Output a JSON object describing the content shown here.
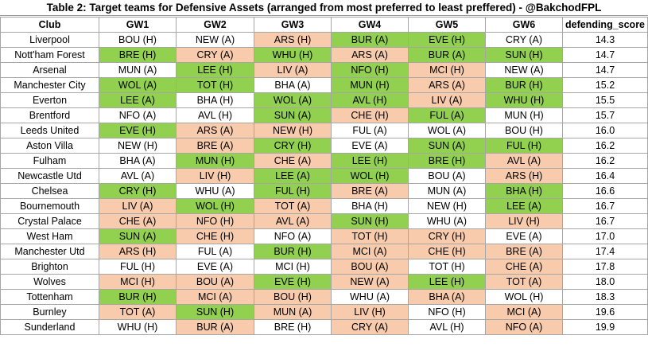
{
  "title": "Table 2: Target teams for Defensive Assets (arranged from most preferred to least preffered) - @BakchodFPL",
  "colors": {
    "green": "#92d050",
    "red": "#f8cbad",
    "white": "#ffffff"
  },
  "headers": [
    "Club",
    "GW1",
    "GW2",
    "GW3",
    "GW4",
    "GW5",
    "GW6",
    "defending_score"
  ],
  "rows": [
    {
      "club": "Liverpool",
      "fixtures": [
        {
          "t": "BOU (H)",
          "c": "w"
        },
        {
          "t": "NEW (A)",
          "c": "w"
        },
        {
          "t": "ARS (H)",
          "c": "r"
        },
        {
          "t": "BUR (A)",
          "c": "g"
        },
        {
          "t": "EVE (H)",
          "c": "g"
        },
        {
          "t": "CRY (A)",
          "c": "w"
        }
      ],
      "score": "14.3"
    },
    {
      "club": "Nott'ham Forest",
      "fixtures": [
        {
          "t": "BRE (H)",
          "c": "g"
        },
        {
          "t": "CRY (A)",
          "c": "r"
        },
        {
          "t": "WHU (H)",
          "c": "g"
        },
        {
          "t": "ARS (A)",
          "c": "r"
        },
        {
          "t": "BUR (A)",
          "c": "g"
        },
        {
          "t": "SUN (H)",
          "c": "g"
        }
      ],
      "score": "14.7"
    },
    {
      "club": "Arsenal",
      "fixtures": [
        {
          "t": "MUN (A)",
          "c": "w"
        },
        {
          "t": "LEE (H)",
          "c": "g"
        },
        {
          "t": "LIV (A)",
          "c": "r"
        },
        {
          "t": "NFO (H)",
          "c": "g"
        },
        {
          "t": "MCI (H)",
          "c": "r"
        },
        {
          "t": "NEW (A)",
          "c": "w"
        }
      ],
      "score": "14.7"
    },
    {
      "club": "Manchester City",
      "fixtures": [
        {
          "t": "WOL (A)",
          "c": "g"
        },
        {
          "t": "TOT (H)",
          "c": "g"
        },
        {
          "t": "BHA (A)",
          "c": "w"
        },
        {
          "t": "MUN (H)",
          "c": "g"
        },
        {
          "t": "ARS (A)",
          "c": "r"
        },
        {
          "t": "BUR (H)",
          "c": "g"
        }
      ],
      "score": "15.2"
    },
    {
      "club": "Everton",
      "fixtures": [
        {
          "t": "LEE (A)",
          "c": "g"
        },
        {
          "t": "BHA (H)",
          "c": "w"
        },
        {
          "t": "WOL (A)",
          "c": "g"
        },
        {
          "t": "AVL (H)",
          "c": "g"
        },
        {
          "t": "LIV (A)",
          "c": "r"
        },
        {
          "t": "WHU (H)",
          "c": "g"
        }
      ],
      "score": "15.5"
    },
    {
      "club": "Brentford",
      "fixtures": [
        {
          "t": "NFO (A)",
          "c": "w"
        },
        {
          "t": "AVL (H)",
          "c": "w"
        },
        {
          "t": "SUN (A)",
          "c": "g"
        },
        {
          "t": "CHE (H)",
          "c": "r"
        },
        {
          "t": "FUL (A)",
          "c": "g"
        },
        {
          "t": "MUN (H)",
          "c": "w"
        }
      ],
      "score": "15.7"
    },
    {
      "club": "Leeds United",
      "fixtures": [
        {
          "t": "EVE (H)",
          "c": "g"
        },
        {
          "t": "ARS (A)",
          "c": "r"
        },
        {
          "t": "NEW (H)",
          "c": "r"
        },
        {
          "t": "FUL (A)",
          "c": "w"
        },
        {
          "t": "WOL (A)",
          "c": "w"
        },
        {
          "t": "BOU (H)",
          "c": "w"
        }
      ],
      "score": "16.0"
    },
    {
      "club": "Aston Villa",
      "fixtures": [
        {
          "t": "NEW (H)",
          "c": "w"
        },
        {
          "t": "BRE (A)",
          "c": "r"
        },
        {
          "t": "CRY (H)",
          "c": "g"
        },
        {
          "t": "EVE (A)",
          "c": "w"
        },
        {
          "t": "SUN (A)",
          "c": "g"
        },
        {
          "t": "FUL (H)",
          "c": "g"
        }
      ],
      "score": "16.2"
    },
    {
      "club": "Fulham",
      "fixtures": [
        {
          "t": "BHA (A)",
          "c": "w"
        },
        {
          "t": "MUN (H)",
          "c": "g"
        },
        {
          "t": "CHE (A)",
          "c": "r"
        },
        {
          "t": "LEE (H)",
          "c": "g"
        },
        {
          "t": "BRE (H)",
          "c": "g"
        },
        {
          "t": "AVL (A)",
          "c": "r"
        }
      ],
      "score": "16.2"
    },
    {
      "club": "Newcastle Utd",
      "fixtures": [
        {
          "t": "AVL (A)",
          "c": "w"
        },
        {
          "t": "LIV (H)",
          "c": "r"
        },
        {
          "t": "LEE (A)",
          "c": "g"
        },
        {
          "t": "WOL (H)",
          "c": "g"
        },
        {
          "t": "BOU (A)",
          "c": "w"
        },
        {
          "t": "ARS (H)",
          "c": "r"
        }
      ],
      "score": "16.4"
    },
    {
      "club": "Chelsea",
      "fixtures": [
        {
          "t": "CRY (H)",
          "c": "g"
        },
        {
          "t": "WHU (A)",
          "c": "w"
        },
        {
          "t": "FUL (H)",
          "c": "g"
        },
        {
          "t": "BRE (A)",
          "c": "r"
        },
        {
          "t": "MUN (A)",
          "c": "w"
        },
        {
          "t": "BHA (H)",
          "c": "g"
        }
      ],
      "score": "16.6"
    },
    {
      "club": "Bournemouth",
      "fixtures": [
        {
          "t": "LIV (A)",
          "c": "r"
        },
        {
          "t": "WOL (H)",
          "c": "g"
        },
        {
          "t": "TOT (A)",
          "c": "r"
        },
        {
          "t": "BHA (H)",
          "c": "w"
        },
        {
          "t": "NEW (H)",
          "c": "w"
        },
        {
          "t": "LEE (A)",
          "c": "g"
        }
      ],
      "score": "16.7"
    },
    {
      "club": "Crystal Palace",
      "fixtures": [
        {
          "t": "CHE (A)",
          "c": "r"
        },
        {
          "t": "NFO (H)",
          "c": "r"
        },
        {
          "t": "AVL (A)",
          "c": "r"
        },
        {
          "t": "SUN (H)",
          "c": "g"
        },
        {
          "t": "WHU (A)",
          "c": "w"
        },
        {
          "t": "LIV (H)",
          "c": "r"
        }
      ],
      "score": "16.7"
    },
    {
      "club": "West Ham",
      "fixtures": [
        {
          "t": "SUN (A)",
          "c": "g"
        },
        {
          "t": "CHE (H)",
          "c": "r"
        },
        {
          "t": "NFO (A)",
          "c": "w"
        },
        {
          "t": "TOT (H)",
          "c": "r"
        },
        {
          "t": "CRY (H)",
          "c": "r"
        },
        {
          "t": "EVE (A)",
          "c": "w"
        }
      ],
      "score": "17.0"
    },
    {
      "club": "Manchester Utd",
      "fixtures": [
        {
          "t": "ARS (H)",
          "c": "r"
        },
        {
          "t": "FUL (A)",
          "c": "w"
        },
        {
          "t": "BUR (H)",
          "c": "g"
        },
        {
          "t": "MCI (A)",
          "c": "r"
        },
        {
          "t": "CHE (H)",
          "c": "r"
        },
        {
          "t": "BRE (A)",
          "c": "r"
        }
      ],
      "score": "17.4"
    },
    {
      "club": "Brighton",
      "fixtures": [
        {
          "t": "FUL (H)",
          "c": "w"
        },
        {
          "t": "EVE (A)",
          "c": "w"
        },
        {
          "t": "MCI (H)",
          "c": "w"
        },
        {
          "t": "BOU (A)",
          "c": "r"
        },
        {
          "t": "TOT (H)",
          "c": "w"
        },
        {
          "t": "CHE (A)",
          "c": "r"
        }
      ],
      "score": "17.8"
    },
    {
      "club": "Wolves",
      "fixtures": [
        {
          "t": "MCI (H)",
          "c": "r"
        },
        {
          "t": "BOU (A)",
          "c": "r"
        },
        {
          "t": "EVE (H)",
          "c": "g"
        },
        {
          "t": "NEW (A)",
          "c": "r"
        },
        {
          "t": "LEE (H)",
          "c": "g"
        },
        {
          "t": "TOT (A)",
          "c": "r"
        }
      ],
      "score": "18.0"
    },
    {
      "club": "Tottenham",
      "fixtures": [
        {
          "t": "BUR (H)",
          "c": "g"
        },
        {
          "t": "MCI (A)",
          "c": "r"
        },
        {
          "t": "BOU (H)",
          "c": "r"
        },
        {
          "t": "WHU (A)",
          "c": "w"
        },
        {
          "t": "BHA (A)",
          "c": "r"
        },
        {
          "t": "WOL (H)",
          "c": "w"
        }
      ],
      "score": "18.3"
    },
    {
      "club": "Burnley",
      "fixtures": [
        {
          "t": "TOT (A)",
          "c": "r"
        },
        {
          "t": "SUN (H)",
          "c": "g"
        },
        {
          "t": "MUN (A)",
          "c": "r"
        },
        {
          "t": "LIV (H)",
          "c": "r"
        },
        {
          "t": "NFO (H)",
          "c": "w"
        },
        {
          "t": "MCI (A)",
          "c": "r"
        }
      ],
      "score": "19.6"
    },
    {
      "club": "Sunderland",
      "fixtures": [
        {
          "t": "WHU (H)",
          "c": "w"
        },
        {
          "t": "BUR (A)",
          "c": "r"
        },
        {
          "t": "BRE (H)",
          "c": "w"
        },
        {
          "t": "CRY (A)",
          "c": "r"
        },
        {
          "t": "AVL (H)",
          "c": "w"
        },
        {
          "t": "NFO (A)",
          "c": "r"
        }
      ],
      "score": "19.9"
    }
  ]
}
